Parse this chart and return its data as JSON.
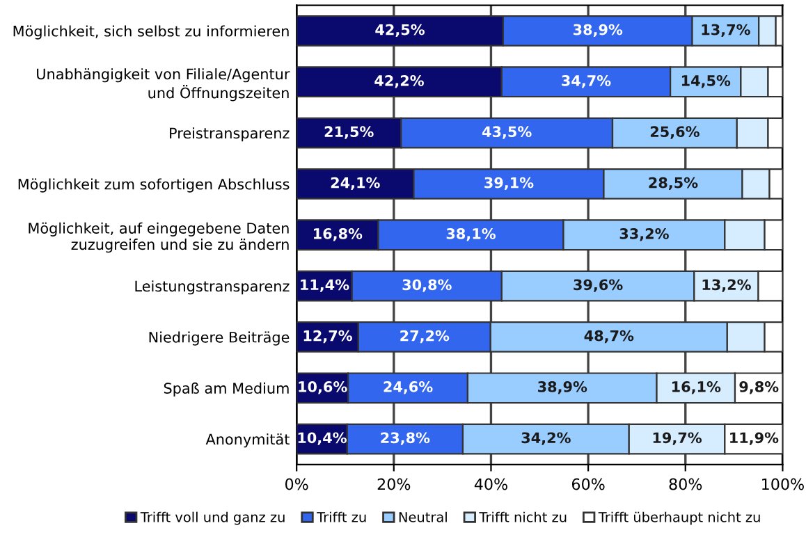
{
  "chart_data": {
    "type": "bar",
    "orientation": "horizontal",
    "stacked": true,
    "categories": [
      "Möglichkeit, sich selbst zu informieren",
      "Unabhängigkeit von Filiale/Agentur\nund Öffnungszeiten",
      "Preistransparenz",
      "Möglichkeit zum sofortigen Abschluss",
      "Möglichkeit, auf eingegebene Daten\nzuzugreifen und sie zu ändern",
      "Leistungstransparenz",
      "Niedrigere Beiträge",
      "Spaß am Medium",
      "Anonymität"
    ],
    "series": [
      {
        "name": "Trifft voll und ganz zu",
        "color": "#0a0a6e",
        "values": [
          42.5,
          42.2,
          21.5,
          24.1,
          16.8,
          11.4,
          12.7,
          10.6,
          10.4
        ],
        "value_labels": [
          "42,5%",
          "42,2%",
          "21,5%",
          "24,1%",
          "16,8%",
          "11,4%",
          "12,7%",
          "10,6%",
          "10,4%"
        ]
      },
      {
        "name": "Trifft zu",
        "color": "#3366ee",
        "values": [
          38.9,
          34.7,
          43.5,
          39.1,
          38.1,
          30.8,
          27.2,
          24.6,
          23.8
        ],
        "value_labels": [
          "38,9%",
          "34,7%",
          "43,5%",
          "39,1%",
          "38,1%",
          "30,8%",
          "27,2%",
          "24,6%",
          "23,8%"
        ]
      },
      {
        "name": "Neutral",
        "color": "#99ccff",
        "values": [
          13.7,
          14.5,
          25.6,
          28.5,
          33.2,
          39.6,
          48.7,
          38.9,
          34.2
        ],
        "value_labels": [
          "13,7%",
          "14,5%",
          "25,6%",
          "28,5%",
          "33,2%",
          "39,6%",
          "48,7%",
          "38,9%",
          "34,2%"
        ]
      },
      {
        "name": "Trifft nicht zu",
        "color": "#d6ecff",
        "values": [
          3.5,
          5.6,
          6.4,
          5.6,
          8.2,
          13.2,
          7.7,
          16.1,
          19.7
        ],
        "value_labels": [
          null,
          null,
          null,
          null,
          null,
          "13,2%",
          null,
          "16,1%",
          "19,7%"
        ]
      },
      {
        "name": "Trifft überhaupt nicht zu",
        "color": "#ffffff",
        "values": [
          1.4,
          3.0,
          3.0,
          2.7,
          3.7,
          5.0,
          3.7,
          9.8,
          11.9
        ],
        "value_labels": [
          null,
          null,
          null,
          null,
          null,
          null,
          null,
          "9,8%",
          "11,9%"
        ]
      }
    ],
    "xlim": [
      0,
      100
    ],
    "xticks": [
      {
        "value": 0,
        "label": "0%"
      },
      {
        "value": 20,
        "label": "20%"
      },
      {
        "value": 40,
        "label": "40%"
      },
      {
        "value": 60,
        "label": "60%"
      },
      {
        "value": 80,
        "label": "80%"
      },
      {
        "value": 100,
        "label": "100%"
      }
    ],
    "grid": "x",
    "legend": "bottom"
  }
}
